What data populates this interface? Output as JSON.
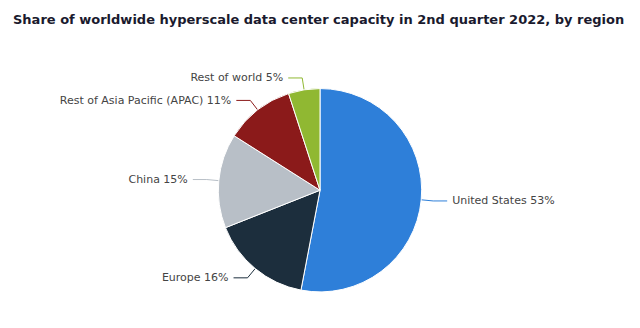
{
  "chart_data": {
    "type": "pie",
    "title": "Share of worldwide hyperscale data center capacity in 2nd quarter 2022, by region",
    "categories": [
      "United States",
      "Europe",
      "China",
      "Rest of Asia Pacific (APAC)",
      "Rest of world"
    ],
    "values": [
      53,
      16,
      15,
      11,
      5
    ],
    "value_labels": [
      "United States 53%",
      "Europe 16%",
      "China 15%",
      "Rest of Asia Pacific (APAC) 11%",
      "Rest of world 5%"
    ],
    "data_labels": true,
    "colors": [
      "#2e7fd9",
      "#1c2e3d",
      "#b8bfc7",
      "#8b1a1a",
      "#90b832"
    ]
  }
}
